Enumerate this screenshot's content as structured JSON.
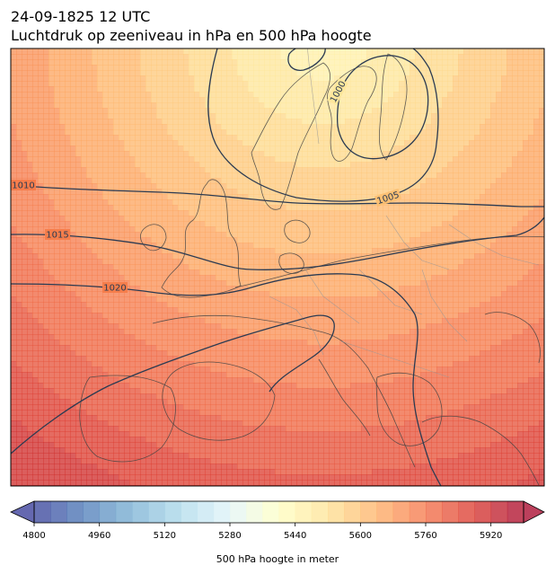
{
  "header": {
    "datetime": "24-09-1825 12 UTC",
    "title": "Luchtdruk op zeeniveau in hPa en 500 hPa hoogte"
  },
  "chart_data": {
    "type": "heatmap",
    "title": "Luchtdruk op zeeniveau in hPa en 500 hPa hoogte",
    "subtitle": "24-09-1825 12 UTC",
    "fill_field": "500 hPa hoogte in meter",
    "contour_field": "Luchtdruk op zeeniveau in hPa",
    "colorbar": {
      "label": "500 hPa hoogte in meter",
      "min": 4800,
      "max": 6000,
      "step": 40,
      "ticks": [
        4800,
        4960,
        5120,
        5280,
        5440,
        5600,
        5760,
        5920
      ],
      "extend": "both",
      "colormap": "RdYlBu_r"
    },
    "isobars": [
      {
        "value": 1000,
        "label": "1000"
      },
      {
        "value": 1005,
        "label": "1005"
      },
      {
        "value": 1010,
        "label": "1010"
      },
      {
        "value": 1015,
        "label": "1015"
      },
      {
        "value": 1020,
        "label": "1020"
      }
    ],
    "height_field_range": [
      5440,
      5880
    ],
    "colors": {
      "isobar": "#2b3b52",
      "coastline": "#444444",
      "border": "#999999"
    }
  }
}
